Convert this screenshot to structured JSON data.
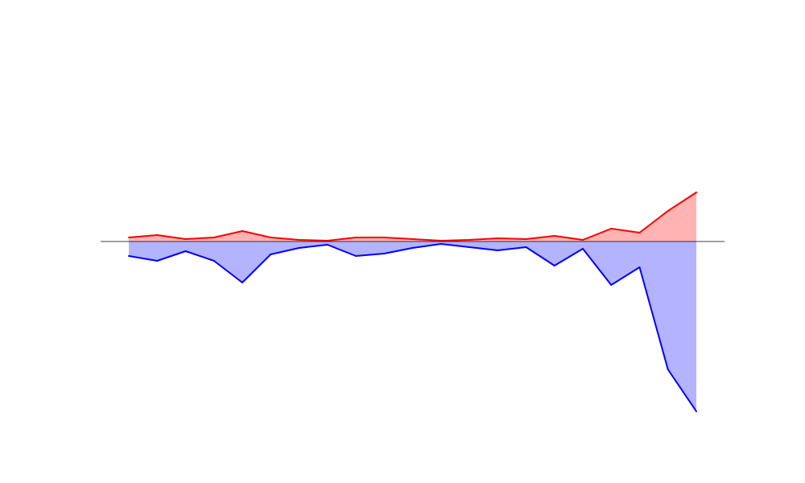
{
  "chart_data": {
    "type": "area",
    "x": [
      1,
      2,
      3,
      4,
      5,
      6,
      7,
      8,
      9,
      10,
      11,
      12,
      13,
      14,
      15,
      16,
      17,
      18,
      19,
      20,
      21
    ],
    "series": [
      {
        "color": "#ff0000",
        "fill": "#ffb3b3",
        "values": [
          5,
          8,
          3,
          5,
          13,
          5,
          2,
          1,
          5,
          5,
          3,
          1,
          2,
          4,
          3,
          7,
          2,
          16,
          11,
          38,
          61
        ]
      },
      {
        "color": "#0000ff",
        "fill": "#b3b3ff",
        "values": [
          -18,
          -24,
          -12,
          -24,
          -51,
          -16,
          -8,
          -4,
          -18,
          -15,
          -8,
          -3,
          -7,
          -11,
          -7,
          -30,
          -9,
          -54,
          -32,
          -159,
          -211
        ]
      }
    ],
    "ylim": [
      -300,
      300
    ],
    "grid": false,
    "axes_visible": false,
    "zero_line": true
  }
}
